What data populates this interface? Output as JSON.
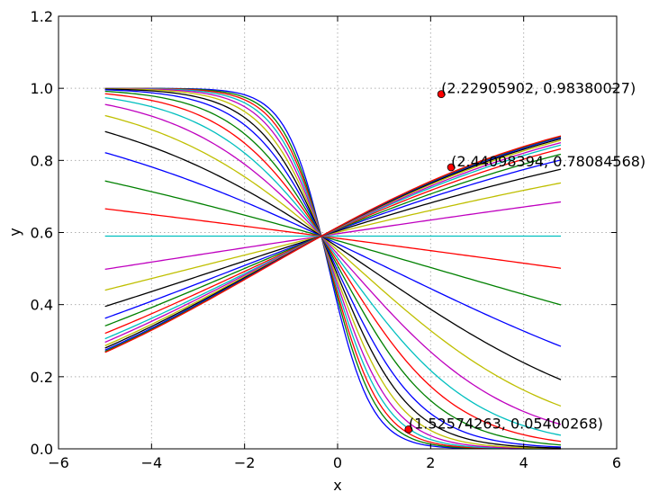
{
  "chart_data": {
    "type": "line",
    "xlabel": "x",
    "ylabel": "y",
    "xlim": [
      -6,
      6
    ],
    "ylim": [
      0.0,
      1.2
    ],
    "xticks": [
      "−6",
      "−4",
      "−2",
      "0",
      "2",
      "4",
      "6"
    ],
    "yticks": [
      "0.0",
      "0.2",
      "0.4",
      "0.6",
      "0.8",
      "1.0",
      "1.2"
    ],
    "grid": true,
    "x_domain": [
      -5,
      4.8
    ],
    "curve_model": {
      "form": "sigmoid",
      "center": -0.35,
      "mid_y": 0.59,
      "slopes": [
        -2.2,
        -2.0,
        -1.85,
        -1.7,
        -1.55,
        -1.4,
        -1.25,
        -1.1,
        -0.95,
        -0.82,
        -0.7,
        -0.58,
        -0.46,
        -0.35,
        -0.25,
        -0.15,
        -0.07,
        0.0,
        0.08,
        0.13,
        0.17,
        0.2,
        0.22,
        0.24,
        0.255,
        0.265,
        0.275,
        0.282,
        0.288,
        0.292,
        0.295
      ]
    },
    "color_cycle": [
      "#0000ff",
      "#008000",
      "#ff0000",
      "#00bfbf",
      "#bf00bf",
      "#bfbf00",
      "#000000"
    ],
    "points": [
      {
        "x": 2.22905902,
        "y": 0.98380027,
        "label": "(2.22905902, 0.98380027)"
      },
      {
        "x": 2.44098394,
        "y": 0.78084568,
        "label": "(2.44098394, 0.78084568)"
      },
      {
        "x": 1.52574263,
        "y": 0.05400268,
        "label": "(1.52574263, 0.05400268)"
      }
    ],
    "point_color": "#ff0000"
  }
}
